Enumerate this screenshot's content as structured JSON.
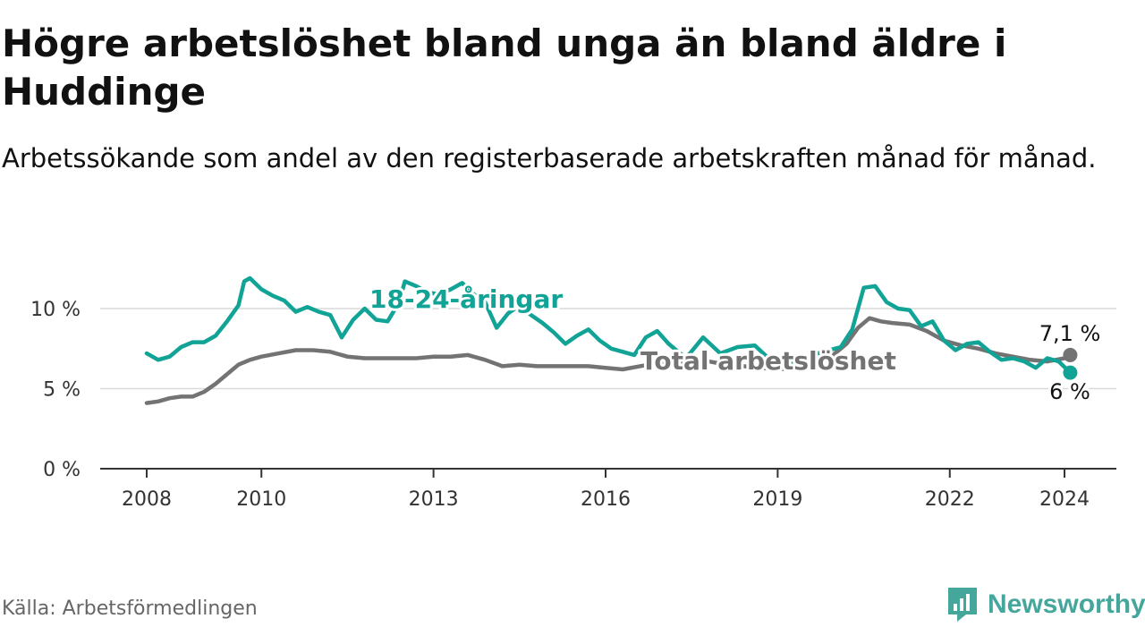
{
  "title": "Högre arbetslöshet bland unga än bland äldre i Huddinge",
  "subtitle": "Arbetssökande som andel av den registerbaserade arbetskraften månad för månad.",
  "source": "Källa: Arbetsförmedlingen",
  "brand": "Newsworthy",
  "colors": {
    "youth": "#11a396",
    "total": "#737373",
    "grid": "#d9d9d9",
    "axis": "#333333",
    "brand": "#45a79b"
  },
  "chart_data": {
    "type": "line",
    "title": "Högre arbetslöshet bland unga än bland äldre i Huddinge",
    "xlabel": "",
    "ylabel": "",
    "xlim": [
      2008,
      2025
    ],
    "ylim": [
      0,
      12
    ],
    "x_ticks": [
      2008,
      2010,
      2013,
      2016,
      2019,
      2022,
      2024
    ],
    "x_tick_labels": [
      "2008",
      "2010",
      "2013",
      "2016",
      "2019",
      "2022",
      "2024"
    ],
    "y_ticks": [
      0,
      5,
      10
    ],
    "y_tick_labels": [
      "0 %",
      "5 %",
      "10 %"
    ],
    "series": [
      {
        "name": "Total arbetslöshet",
        "label": "Total arbetslöshet",
        "end_label": "7,1 %",
        "color": "#737373",
        "x": [
          2008.0,
          2008.2,
          2008.4,
          2008.6,
          2008.8,
          2009.0,
          2009.2,
          2009.4,
          2009.6,
          2009.8,
          2010.0,
          2010.3,
          2010.6,
          2010.9,
          2011.2,
          2011.5,
          2011.8,
          2012.1,
          2012.4,
          2012.7,
          2013.0,
          2013.3,
          2013.6,
          2013.9,
          2014.2,
          2014.5,
          2014.8,
          2015.1,
          2015.4,
          2015.7,
          2016.0,
          2016.3,
          2016.6,
          2016.9,
          2017.2,
          2017.5,
          2017.8,
          2018.1,
          2018.4,
          2018.7,
          2019.0,
          2019.3,
          2019.6,
          2019.9,
          2020.2,
          2020.4,
          2020.6,
          2020.8,
          2021.0,
          2021.3,
          2021.6,
          2021.9,
          2022.2,
          2022.5,
          2022.8,
          2023.1,
          2023.4,
          2023.7,
          2024.0,
          2024.1
        ],
        "values": [
          4.1,
          4.2,
          4.4,
          4.5,
          4.5,
          4.8,
          5.3,
          5.9,
          6.5,
          6.8,
          7.0,
          7.2,
          7.4,
          7.4,
          7.3,
          7.0,
          6.9,
          6.9,
          6.9,
          6.9,
          7.0,
          7.0,
          7.1,
          6.8,
          6.4,
          6.5,
          6.4,
          6.4,
          6.4,
          6.4,
          6.3,
          6.2,
          6.4,
          6.6,
          6.7,
          6.7,
          6.7,
          6.5,
          6.4,
          6.3,
          6.2,
          6.3,
          6.5,
          6.9,
          7.8,
          8.8,
          9.4,
          9.2,
          9.1,
          9.0,
          8.6,
          8.0,
          7.7,
          7.5,
          7.2,
          7.0,
          6.8,
          6.7,
          6.9,
          7.1
        ]
      },
      {
        "name": "18-24-åringar",
        "label": "18-24-åringar",
        "end_label": "6 %",
        "color": "#11a396",
        "x": [
          2008.0,
          2008.2,
          2008.4,
          2008.6,
          2008.8,
          2009.0,
          2009.2,
          2009.4,
          2009.6,
          2009.7,
          2009.8,
          2010.0,
          2010.2,
          2010.4,
          2010.6,
          2010.8,
          2011.0,
          2011.2,
          2011.4,
          2011.6,
          2011.8,
          2012.0,
          2012.2,
          2012.4,
          2012.5,
          2012.7,
          2012.9,
          2013.1,
          2013.3,
          2013.5,
          2013.7,
          2013.9,
          2014.1,
          2014.3,
          2014.5,
          2014.7,
          2014.9,
          2015.1,
          2015.3,
          2015.5,
          2015.7,
          2015.9,
          2016.1,
          2016.3,
          2016.5,
          2016.7,
          2016.9,
          2017.1,
          2017.4,
          2017.7,
          2018.0,
          2018.3,
          2018.6,
          2018.9,
          2019.2,
          2019.5,
          2019.8,
          2020.1,
          2020.3,
          2020.5,
          2020.7,
          2020.9,
          2021.1,
          2021.3,
          2021.5,
          2021.7,
          2021.9,
          2022.1,
          2022.3,
          2022.5,
          2022.7,
          2022.9,
          2023.1,
          2023.3,
          2023.5,
          2023.7,
          2023.9,
          2024.1
        ],
        "values": [
          7.2,
          6.8,
          7.0,
          7.6,
          7.9,
          7.9,
          8.3,
          9.2,
          10.2,
          11.7,
          11.9,
          11.2,
          10.8,
          10.5,
          9.8,
          10.1,
          9.8,
          9.6,
          8.2,
          9.3,
          10.0,
          9.3,
          9.2,
          10.4,
          11.7,
          11.4,
          11.0,
          10.9,
          11.2,
          11.6,
          10.9,
          10.4,
          8.8,
          9.7,
          10.2,
          9.6,
          9.1,
          8.5,
          7.8,
          8.3,
          8.7,
          8.0,
          7.5,
          7.3,
          7.1,
          8.2,
          8.6,
          7.8,
          6.9,
          8.2,
          7.2,
          7.6,
          7.7,
          6.7,
          6.6,
          7.0,
          7.3,
          7.6,
          8.7,
          11.3,
          11.4,
          10.4,
          10.0,
          9.9,
          8.9,
          9.2,
          8.0,
          7.4,
          7.8,
          7.9,
          7.3,
          6.8,
          6.9,
          6.7,
          6.3,
          6.9,
          6.7,
          6.0
        ]
      }
    ]
  }
}
